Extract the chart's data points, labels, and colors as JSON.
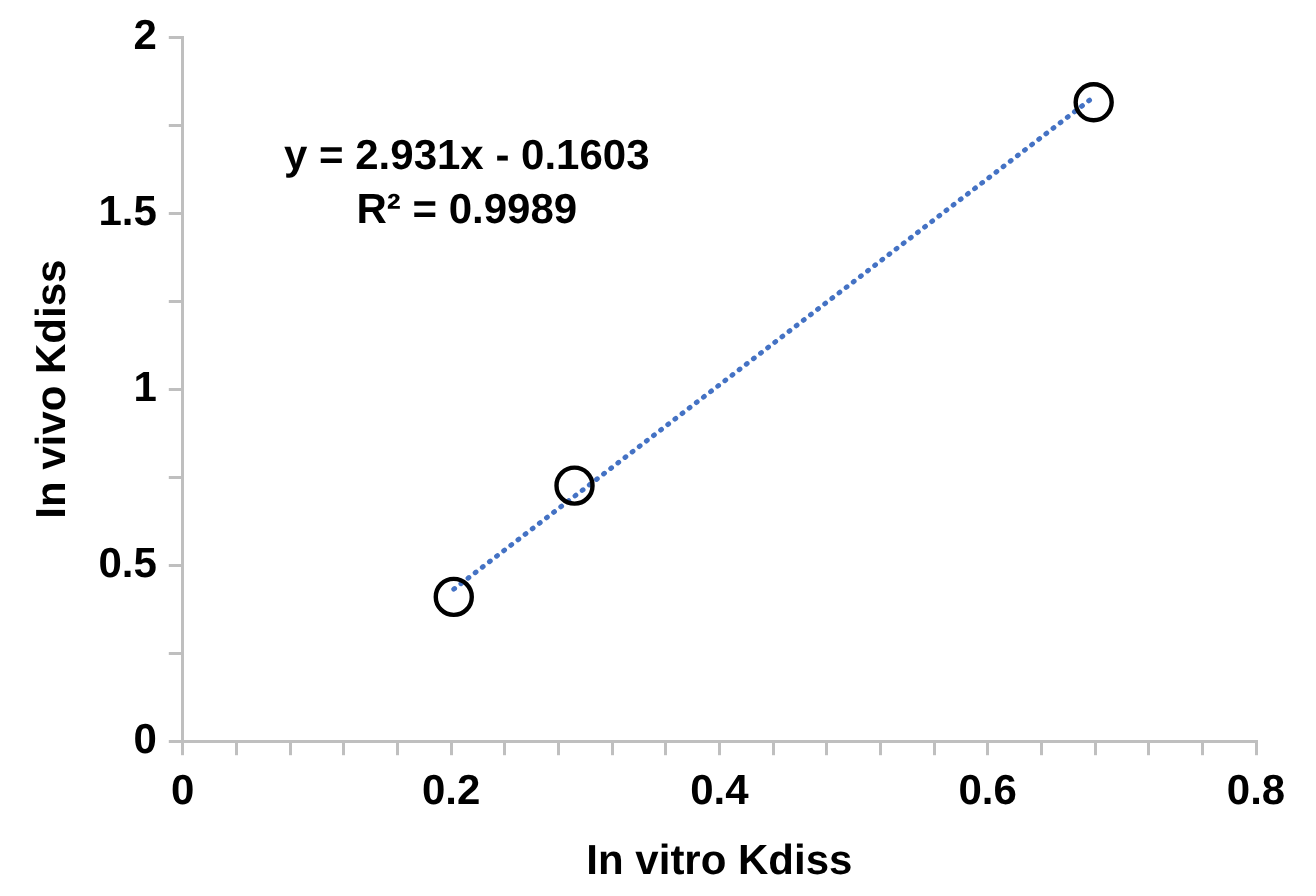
{
  "chart_data": {
    "type": "scatter",
    "xlabel": "In vitro Kdiss",
    "ylabel": "In vivo Kdiss",
    "annotations": [
      "y = 2.931x - 0.1603",
      "R² = 0.9989"
    ],
    "series": [
      {
        "type": "scatter",
        "color": "#000000",
        "marker": "circle",
        "x": [
          0.202,
          0.292,
          0.679
        ],
        "values": [
          0.41,
          0.726,
          1.815
        ]
      },
      {
        "type": "line",
        "color": "#4472c4",
        "marker": "none",
        "line_style": "dotted",
        "x": [
          0.202,
          0.679
        ],
        "values": [
          0.432,
          1.83
        ]
      }
    ],
    "xlim": [
      0,
      0.8
    ],
    "xticks": [
      0,
      {
        "value": 0.04,
        "label": null
      },
      {
        "value": 0.08,
        "label": null
      },
      {
        "value": 0.12,
        "label": null
      },
      {
        "value": 0.16,
        "label": null
      },
      0.2,
      {
        "value": 0.24,
        "label": null
      },
      {
        "value": 0.28,
        "label": null
      },
      {
        "value": 0.32,
        "label": null
      },
      {
        "value": 0.36,
        "label": null
      },
      0.4,
      {
        "value": 0.44,
        "label": null
      },
      {
        "value": 0.48,
        "label": null
      },
      {
        "value": 0.52,
        "label": null
      },
      {
        "value": 0.56,
        "label": null
      },
      0.6,
      {
        "value": 0.64,
        "label": null
      },
      {
        "value": 0.68,
        "label": null
      },
      {
        "value": 0.72,
        "label": null
      },
      {
        "value": 0.76,
        "label": null
      },
      0.8
    ],
    "ylim": [
      0,
      2
    ],
    "yticks": [
      0,
      {
        "value": 0.25,
        "label": null
      },
      0.5,
      {
        "value": 0.75,
        "label": null
      },
      1,
      {
        "value": 1.25,
        "label": null
      },
      1.5,
      {
        "value": 1.75,
        "label": null
      },
      2
    ],
    "grid": false,
    "legend": false
  }
}
